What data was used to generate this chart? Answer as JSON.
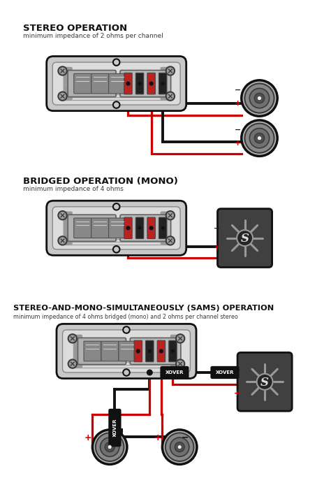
{
  "bg": "#ffffff",
  "black": "#111111",
  "red": "#cc0000",
  "dgray": "#3a3a3a",
  "mgray": "#777777",
  "lgray": "#c8c8c8",
  "amp_outer": "#2a2a2a",
  "amp_body": "#d4d4d4",
  "amp_inner": "#e8e8e8",
  "amp_panel_l": "#b8b8b8",
  "amp_panel_r": "#c0c0c0",
  "amp_knob": "#555555",
  "sub_bg": "#444444",
  "wire_lw": 2.3,
  "title1": "STEREO OPERATION",
  "sub1": "minimum impedance of 2 ohms per channel",
  "title2": "BRIDGED OPERATION (MONO)",
  "sub2": "minimum impedance of 4 ohms",
  "title3": "STEREO-AND-MONO-SIMULTANEOUSLY (SAMS) OPERATION",
  "sub3": "minimum impedance of 4 ohms bridged (mono) and 2 ohms per channel stereo",
  "xover_lbl": "XOVER"
}
